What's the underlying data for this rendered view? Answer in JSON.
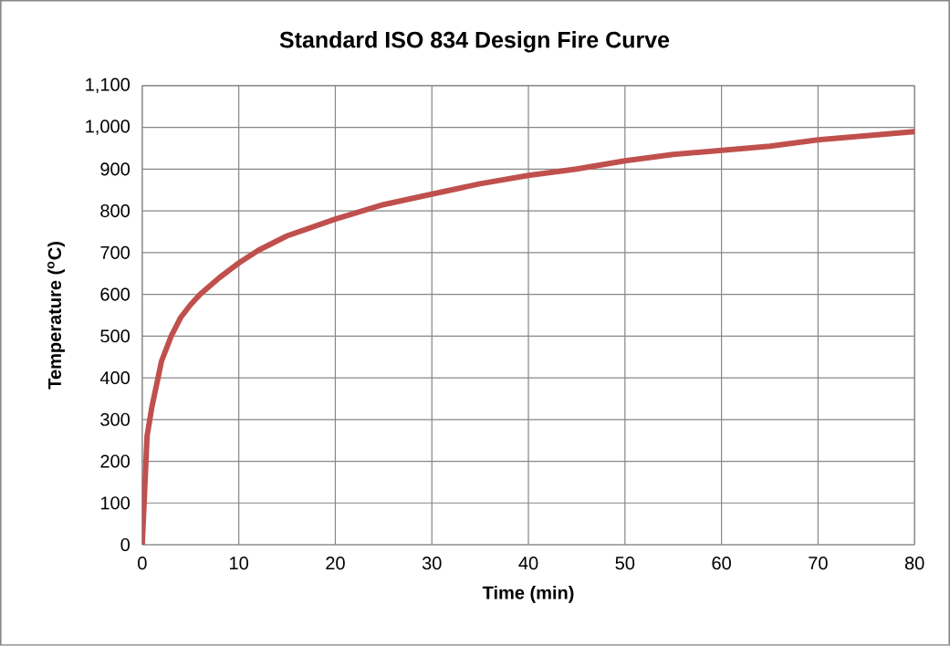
{
  "chart_data": {
    "type": "line",
    "title": "Standard ISO 834 Design Fire Curve",
    "xlabel": "Time (min)",
    "ylabel": "Temperature ($^{o}$C)",
    "x": [
      0,
      0.5,
      1,
      2,
      3,
      4,
      5,
      6,
      8,
      10,
      12,
      15,
      20,
      25,
      30,
      35,
      40,
      45,
      50,
      55,
      60,
      65,
      70,
      75,
      80
    ],
    "series": [
      {
        "color": "#c0504d",
        "values": [
          0,
          260,
          330,
          440,
          500,
          545,
          575,
          600,
          640,
          675,
          705,
          740,
          780,
          815,
          840,
          865,
          885,
          900,
          920,
          935,
          945,
          955,
          970,
          980,
          990
        ]
      }
    ],
    "xlim": [
      0,
      80
    ],
    "ylim": [
      0,
      1100
    ],
    "xticks": [
      0,
      10,
      20,
      30,
      40,
      50,
      60,
      70,
      80
    ],
    "yticks": [
      0,
      100,
      200,
      300,
      400,
      500,
      600,
      700,
      800,
      900,
      {
        "value": 1000,
        "label": "1,000"
      },
      {
        "value": 1100,
        "label": "1,100"
      }
    ],
    "grid": true,
    "marker": "none",
    "line_style": "solid"
  }
}
